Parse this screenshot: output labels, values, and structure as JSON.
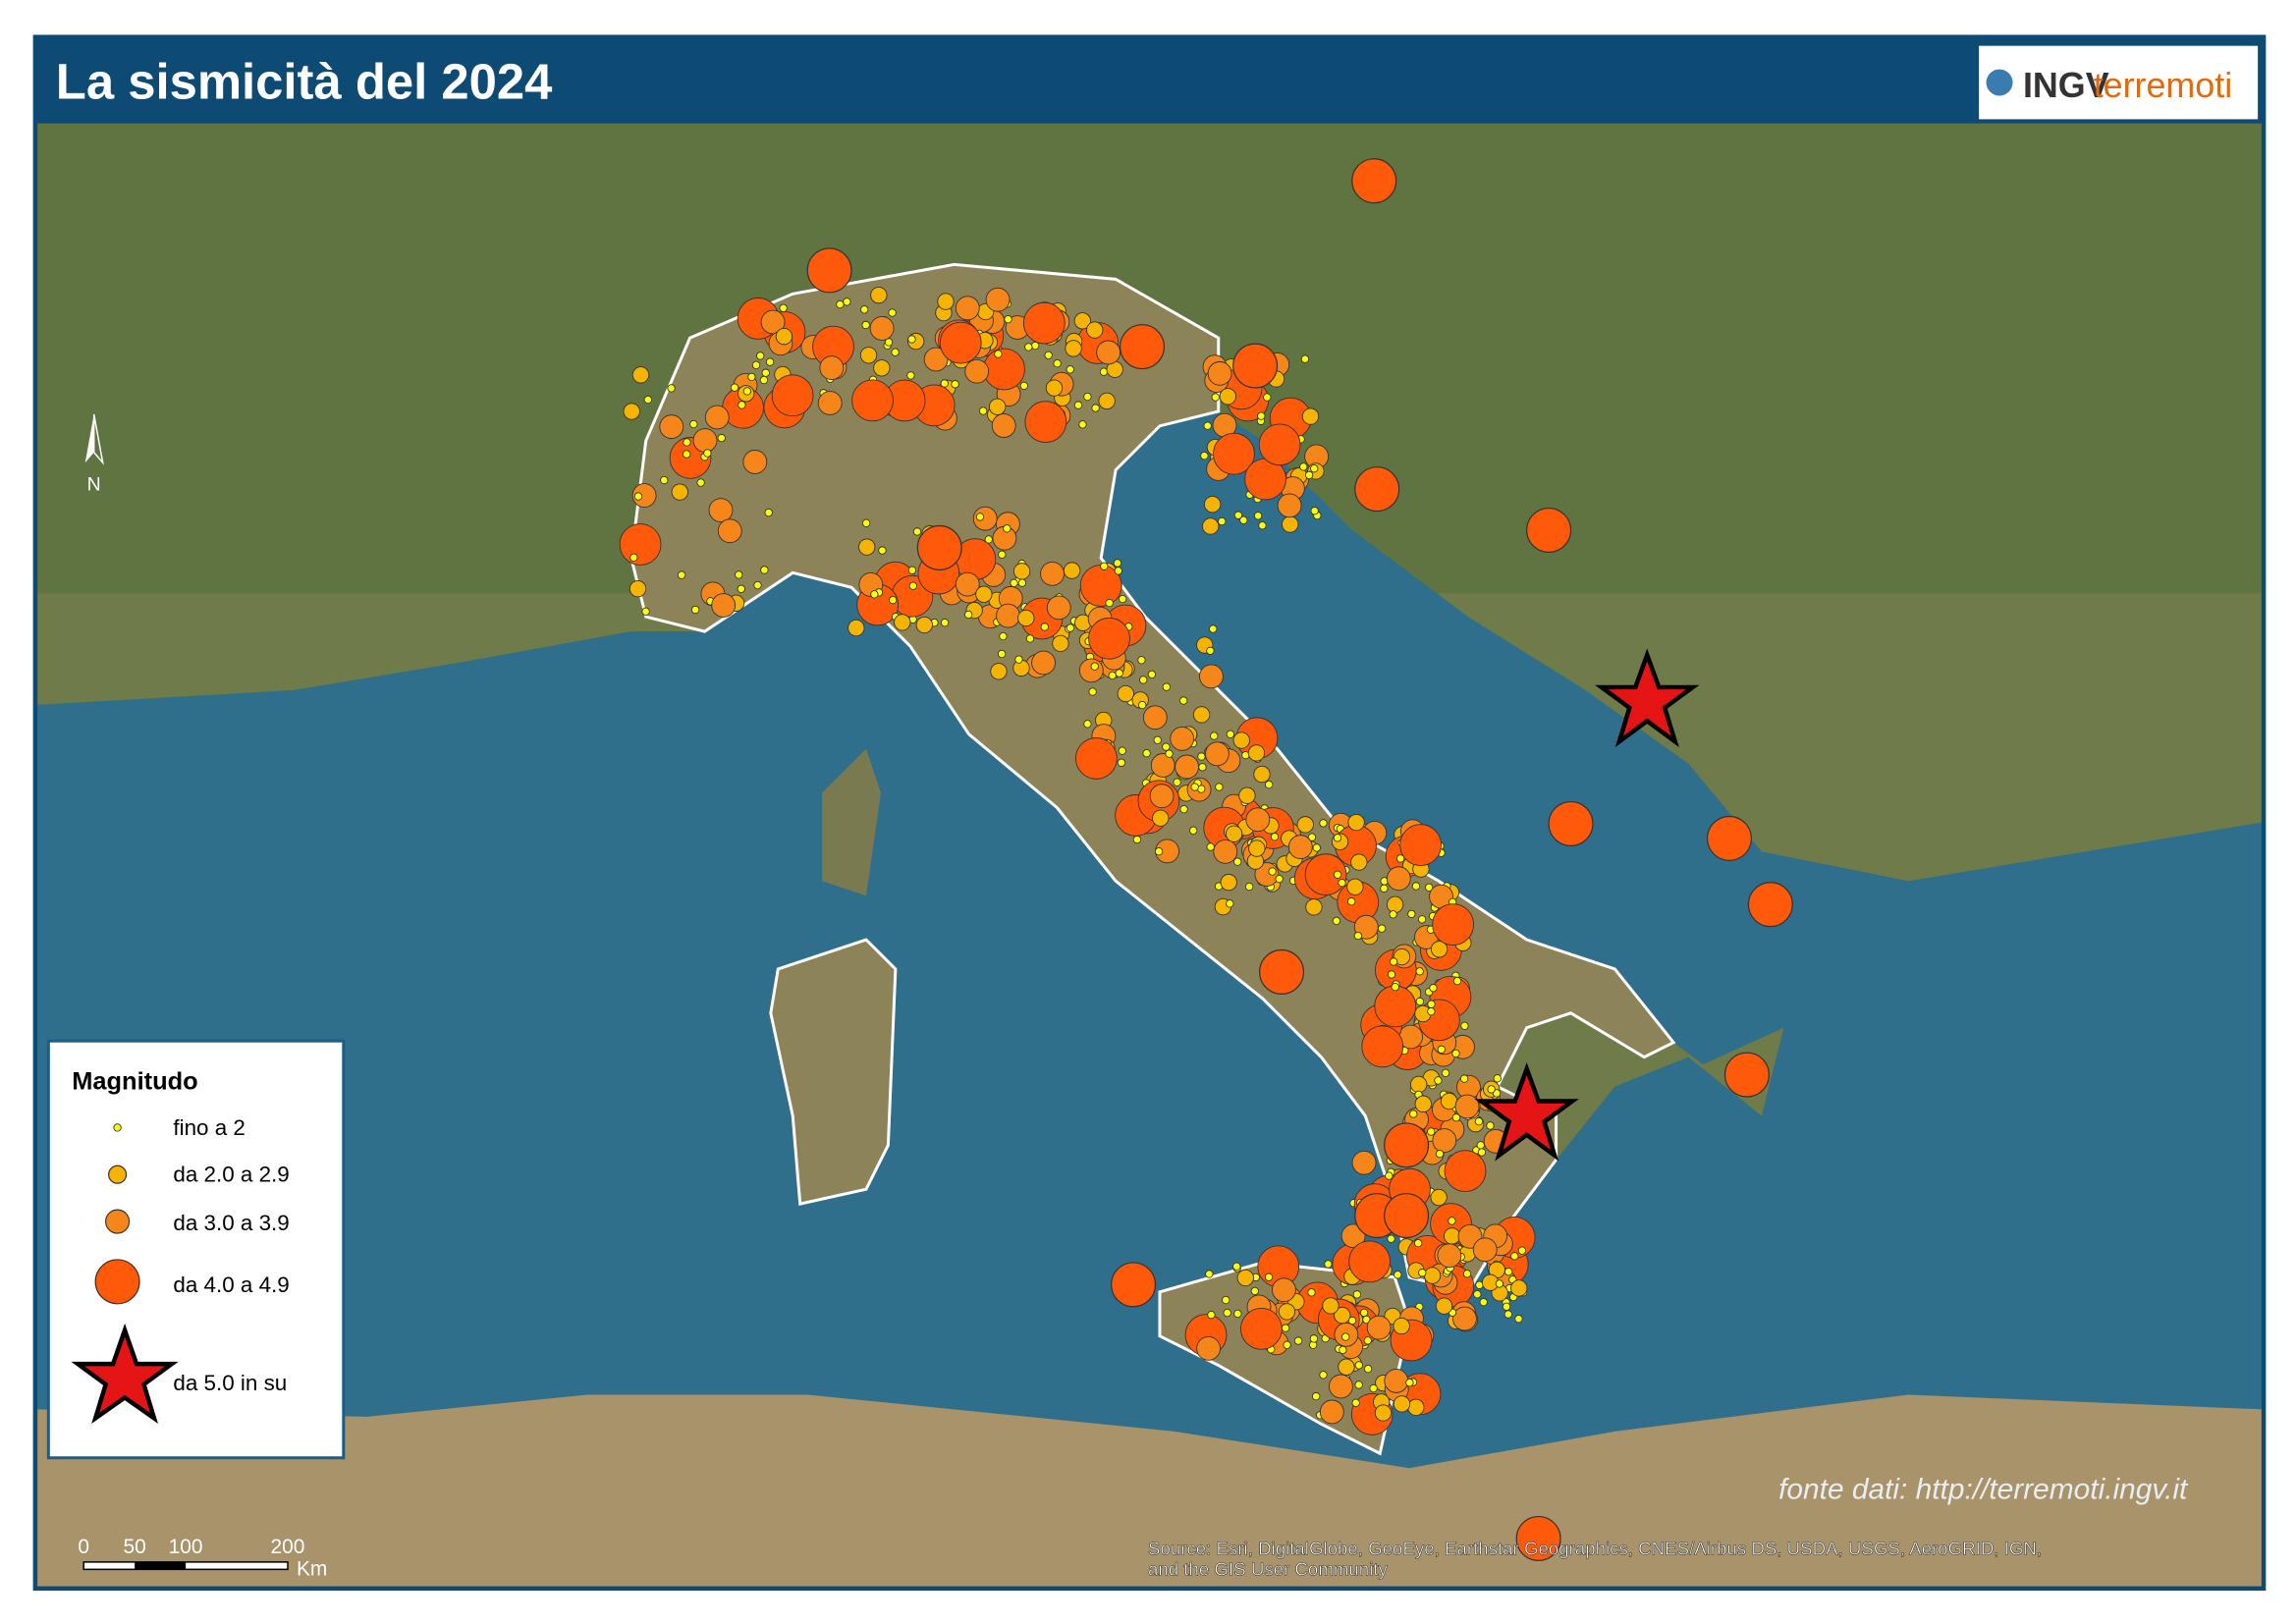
{
  "header": {
    "title": "La sismicità del 2024",
    "logo": {
      "brand": "INGV",
      "product": "terremoti"
    }
  },
  "north": "N",
  "legend": {
    "title": "Magnitudo",
    "items": [
      "fino a 2",
      "da 2.0 a 2.9",
      "da 3.0 a 3.9",
      "da 4.0 a 4.9",
      "da 5.0 in su"
    ]
  },
  "scale_bar": {
    "ticks": [
      0,
      50,
      100,
      200
    ],
    "unit": "Km"
  },
  "credit": "fonte dati: http://terremoti.ingv.it",
  "source": [
    "Source: Esri, DigitalGlobe, GeoEye, Earthstar Geographics, CNES/Airbus DS, USDA, USGS, AeroGRID, IGN,",
    "and the GIS User Community"
  ]
}
